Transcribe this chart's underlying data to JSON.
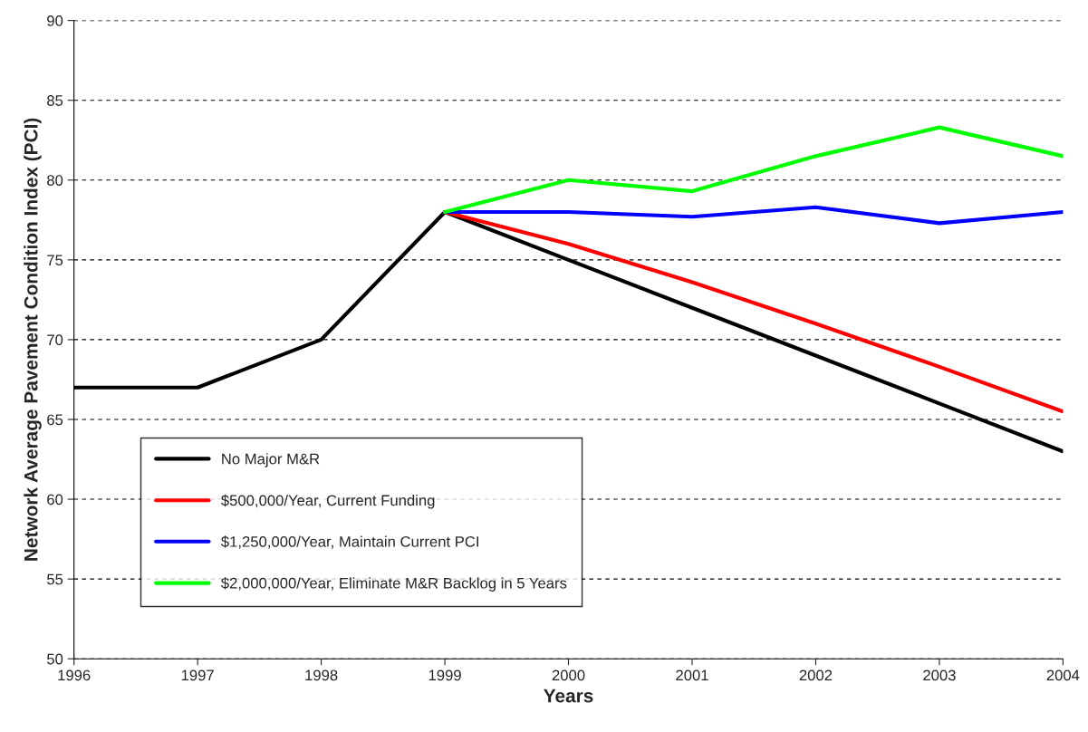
{
  "chart_data": {
    "type": "line",
    "xlabel": "Years",
    "ylabel": "Network Average Pavement Condition Index (PCI)",
    "xlim": [
      1996,
      2004
    ],
    "xticks": [
      1996,
      1997,
      1998,
      1999,
      2000,
      2001,
      2002,
      2003,
      2004
    ],
    "ylim": [
      50,
      90
    ],
    "yticks": [
      50,
      55,
      60,
      65,
      70,
      75,
      80,
      85,
      90
    ],
    "grid": "y",
    "legend": "bottom left",
    "marker": "none",
    "line_style": "solid",
    "series": [
      {
        "name": "No Major M&R",
        "color": "#000000",
        "x": [
          1996,
          1997,
          1998,
          1999,
          2000,
          2001,
          2002,
          2003,
          2004
        ],
        "values": [
          67,
          67,
          70,
          78,
          75,
          72,
          69,
          66,
          63
        ]
      },
      {
        "name": "$500,000/Year, Current Funding",
        "color": "#ff0000",
        "x": [
          1999,
          2000,
          2001,
          2002,
          2003,
          2004
        ],
        "values": [
          78,
          76,
          73.6,
          71,
          68.3,
          65.5
        ]
      },
      {
        "name": "$1,250,000/Year, Maintain Current PCI",
        "color": "#0000ff",
        "x": [
          1999,
          2000,
          2001,
          2002,
          2003,
          2004
        ],
        "values": [
          78,
          78,
          77.7,
          78.3,
          77.3,
          78
        ]
      },
      {
        "name": "$2,000,000/Year, Eliminate M&R Backlog in 5 Years",
        "color": "#00ff00",
        "x": [
          1999,
          2000,
          2001,
          2002,
          2003,
          2004
        ],
        "values": [
          78,
          80,
          79.3,
          81.5,
          83.3,
          81.5
        ]
      }
    ]
  }
}
